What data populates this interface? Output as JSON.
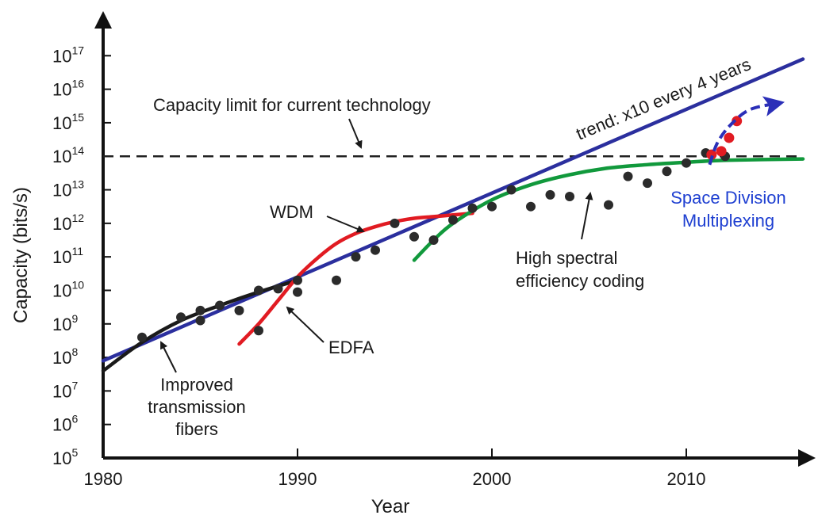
{
  "chart_data": {
    "type": "scatter",
    "title": "",
    "xlabel": "Year",
    "ylabel": "Capacity  (bits/s)",
    "xlim": [
      1980,
      2016
    ],
    "ylim_log10": [
      5,
      18
    ],
    "y_scale": "log",
    "grid": false,
    "x_ticks": [
      {
        "value": 1980,
        "label": "1980"
      },
      {
        "value": 1990,
        "label": "1990"
      },
      {
        "value": 2000,
        "label": "2000"
      },
      {
        "value": 2010,
        "label": "2010"
      }
    ],
    "y_ticks": [
      {
        "exp": 5,
        "base": "10",
        "sup": "5"
      },
      {
        "exp": 6,
        "base": "10",
        "sup": "6"
      },
      {
        "exp": 7,
        "base": "10",
        "sup": "7"
      },
      {
        "exp": 8,
        "base": "10",
        "sup": "8"
      },
      {
        "exp": 9,
        "base": "10",
        "sup": "9"
      },
      {
        "exp": 10,
        "base": "10",
        "sup": "10"
      },
      {
        "exp": 11,
        "base": "10",
        "sup": "11"
      },
      {
        "exp": 12,
        "base": "10",
        "sup": "12"
      },
      {
        "exp": 13,
        "base": "10",
        "sup": "13"
      },
      {
        "exp": 14,
        "base": "10",
        "sup": "14"
      },
      {
        "exp": 15,
        "base": "10",
        "sup": "15"
      },
      {
        "exp": 16,
        "base": "10",
        "sup": "16"
      },
      {
        "exp": 17,
        "base": "10",
        "sup": "17"
      }
    ],
    "capacity_limit_log10": 14,
    "points_black": [
      [
        1982,
        8.6
      ],
      [
        1984,
        9.2
      ],
      [
        1985,
        9.4
      ],
      [
        1985,
        9.1
      ],
      [
        1986,
        9.55
      ],
      [
        1987,
        9.4
      ],
      [
        1988,
        10.0
      ],
      [
        1988,
        8.8
      ],
      [
        1989,
        10.05
      ],
      [
        1990,
        10.3
      ],
      [
        1990,
        9.95
      ],
      [
        1992,
        10.3
      ],
      [
        1993,
        11.0
      ],
      [
        1994,
        11.2
      ],
      [
        1995,
        12.0
      ],
      [
        1996,
        11.6
      ],
      [
        1997,
        11.5
      ],
      [
        1998,
        12.1
      ],
      [
        1999,
        12.45
      ],
      [
        2000,
        12.5
      ],
      [
        2001,
        13.0
      ],
      [
        2002,
        12.5
      ],
      [
        2003,
        12.85
      ],
      [
        2004,
        12.8
      ],
      [
        2006,
        12.55
      ],
      [
        2007,
        13.4
      ],
      [
        2008,
        13.2
      ],
      [
        2009,
        13.55
      ],
      [
        2010,
        13.8
      ],
      [
        2011,
        14.1
      ],
      [
        2012,
        14.0
      ]
    ],
    "points_red": [
      [
        2011.3,
        14.05
      ],
      [
        2011.8,
        14.15
      ],
      [
        2012.2,
        14.55
      ],
      [
        2012.6,
        15.05
      ]
    ],
    "series": [
      {
        "color": "#2b2f9e",
        "points": [
          [
            1980,
            7.9
          ],
          [
            2016,
            16.9
          ]
        ]
      },
      {
        "color": "#1a1a1a",
        "points": [
          [
            1980,
            7.6
          ],
          [
            1982,
            8.45
          ],
          [
            1984,
            9.1
          ],
          [
            1986,
            9.55
          ],
          [
            1988,
            9.95
          ],
          [
            1990,
            10.3
          ]
        ]
      },
      {
        "color": "#e11b22",
        "points": [
          [
            1987,
            8.4
          ],
          [
            1988,
            9.0
          ],
          [
            1989,
            9.7
          ],
          [
            1990,
            10.4
          ],
          [
            1991,
            10.95
          ],
          [
            1992,
            11.4
          ],
          [
            1993,
            11.7
          ],
          [
            1994,
            11.9
          ],
          [
            1995,
            12.05
          ],
          [
            1996,
            12.15
          ],
          [
            1997,
            12.2
          ],
          [
            1998,
            12.25
          ],
          [
            1999,
            12.3
          ]
        ]
      },
      {
        "color": "#11993c",
        "points": [
          [
            1996,
            10.9
          ],
          [
            1997,
            11.5
          ],
          [
            1998,
            12.0
          ],
          [
            2000,
            12.7
          ],
          [
            2002,
            13.15
          ],
          [
            2004,
            13.45
          ],
          [
            2006,
            13.65
          ],
          [
            2008,
            13.75
          ],
          [
            2010,
            13.82
          ],
          [
            2012,
            13.88
          ],
          [
            2016,
            13.92
          ]
        ]
      }
    ],
    "sdm_arrow": [
      [
        2011.2,
        13.75
      ],
      [
        2011.6,
        14.4
      ],
      [
        2012.3,
        14.95
      ],
      [
        2013.3,
        15.4
      ],
      [
        2014.9,
        15.6
      ]
    ],
    "annotations": {
      "trend": "trend:  x10 every 4 years",
      "capacity_limit": "Capacity limit for current technology",
      "wdm": "WDM",
      "edfa": "EDFA",
      "fibers": [
        "Improved",
        "transmission",
        "fibers"
      ],
      "coding": [
        "High spectral",
        "efficiency coding"
      ],
      "sdm": [
        "Space Division",
        "Multiplexing"
      ]
    }
  },
  "colors": {
    "trend": "#2b2f9e",
    "wdm": "#e11b22",
    "coding": "#11993c",
    "fibers": "#1a1a1a",
    "sdm": "#1e3fd1",
    "points": "#2b2b2b",
    "points_red": "#e11b22"
  }
}
